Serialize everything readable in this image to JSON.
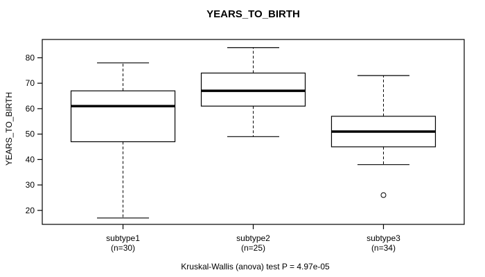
{
  "chart_data": {
    "type": "boxplot",
    "title": "YEARS_TO_BIRTH",
    "ylabel": "YEARS_TO_BIRTH",
    "xlabel": "",
    "footnote": "Kruskal-Wallis (anova) test P = 4.97e-05",
    "ylim": [
      14.5,
      87.2
    ],
    "yticks": [
      20,
      30,
      40,
      50,
      60,
      70,
      80
    ],
    "grid": false,
    "categories": [
      "subtype1",
      "subtype2",
      "subtype3"
    ],
    "category_sublabels": [
      "(n=30)",
      "(n=25)",
      "(n=34)"
    ],
    "series": [
      {
        "name": "subtype1",
        "n": 30,
        "whisker_low": 17,
        "q1": 47,
        "median": 61,
        "q3": 67,
        "whisker_high": 78,
        "outliers": []
      },
      {
        "name": "subtype2",
        "n": 25,
        "whisker_low": 49,
        "q1": 61,
        "median": 67,
        "q3": 74,
        "whisker_high": 84,
        "outliers": []
      },
      {
        "name": "subtype3",
        "n": 34,
        "whisker_low": 38,
        "q1": 45,
        "median": 51,
        "q3": 57,
        "whisker_high": 73,
        "outliers": [
          26
        ]
      }
    ],
    "colors": {
      "line": "#000000",
      "box_fill": "#ffffff",
      "background": "#ffffff",
      "text": "#000000"
    }
  }
}
